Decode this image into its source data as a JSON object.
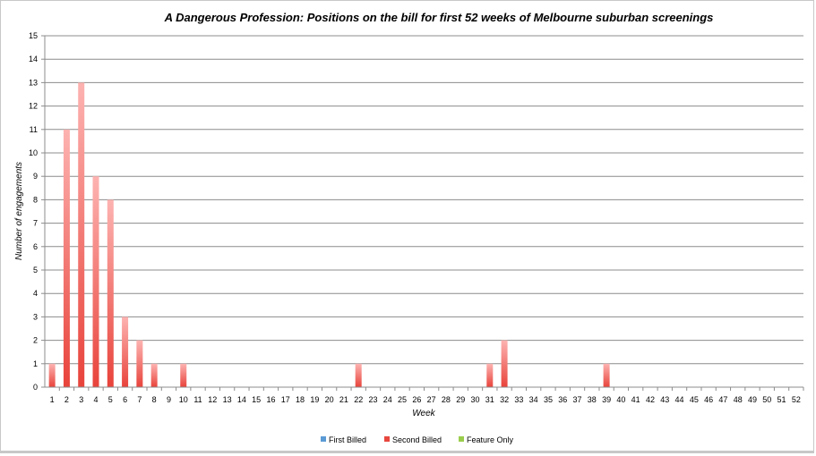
{
  "chart_data": {
    "type": "bar",
    "title": "A Dangerous Profession: Positions on the bill for first 52 weeks of Melbourne suburban screenings",
    "xlabel": "Week",
    "ylabel": "Number of engagements",
    "ylim": [
      0,
      15
    ],
    "yticks": [
      0,
      1,
      2,
      3,
      4,
      5,
      6,
      7,
      8,
      9,
      10,
      11,
      12,
      13,
      14,
      15
    ],
    "grid": true,
    "legend_position": "bottom",
    "categories": [
      "1",
      "2",
      "3",
      "4",
      "5",
      "6",
      "7",
      "8",
      "9",
      "10",
      "11",
      "12",
      "13",
      "14",
      "15",
      "16",
      "17",
      "18",
      "19",
      "20",
      "21",
      "22",
      "23",
      "24",
      "25",
      "26",
      "27",
      "28",
      "29",
      "30",
      "31",
      "32",
      "33",
      "34",
      "35",
      "36",
      "37",
      "38",
      "39",
      "40",
      "41",
      "42",
      "43",
      "44",
      "45",
      "46",
      "47",
      "48",
      "49",
      "50",
      "51",
      "52"
    ],
    "series": [
      {
        "name": "First Billed",
        "color": "#5b9bd5",
        "values": [
          0,
          0,
          0,
          0,
          0,
          0,
          0,
          0,
          0,
          0,
          0,
          0,
          0,
          0,
          0,
          0,
          0,
          0,
          0,
          0,
          0,
          0,
          0,
          0,
          0,
          0,
          0,
          0,
          0,
          0,
          0,
          0,
          0,
          0,
          0,
          0,
          0,
          0,
          0,
          0,
          0,
          0,
          0,
          0,
          0,
          0,
          0,
          0,
          0,
          0,
          0,
          0
        ]
      },
      {
        "name": "Second Billed",
        "color": "#e8473f",
        "values": [
          1,
          11,
          13,
          9,
          8,
          3,
          2,
          1,
          0,
          1,
          0,
          0,
          0,
          0,
          0,
          0,
          0,
          0,
          0,
          0,
          0,
          1,
          0,
          0,
          0,
          0,
          0,
          0,
          0,
          0,
          1,
          2,
          0,
          0,
          0,
          0,
          0,
          0,
          1,
          0,
          0,
          0,
          0,
          0,
          0,
          0,
          0,
          0,
          0,
          0,
          0,
          0
        ]
      },
      {
        "name": "Feature Only",
        "color": "#9acd4c",
        "values": [
          0,
          0,
          0,
          0,
          0,
          0,
          0,
          0,
          0,
          0,
          0,
          0,
          0,
          0,
          0,
          0,
          0,
          0,
          0,
          0,
          0,
          0,
          0,
          0,
          0,
          0,
          0,
          0,
          0,
          0,
          0,
          0,
          0,
          0,
          0,
          0,
          0,
          0,
          0,
          0,
          0,
          0,
          0,
          0,
          0,
          0,
          0,
          0,
          0,
          0,
          0,
          0
        ]
      }
    ]
  }
}
